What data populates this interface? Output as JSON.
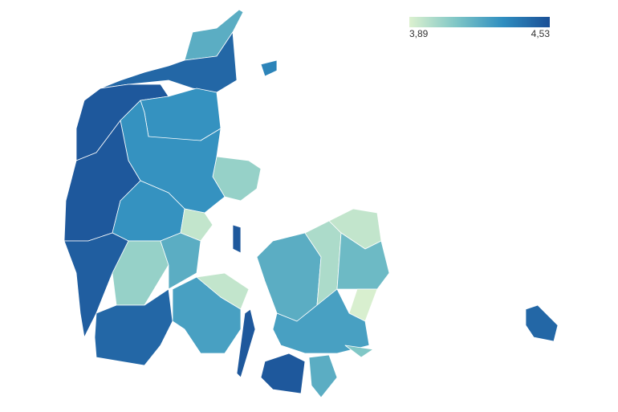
{
  "map": {
    "legend": {
      "min": {
        "value": 3.89,
        "label": "3,89"
      },
      "max": {
        "value": 4.53,
        "label": "4,53"
      },
      "colors": [
        "#dcf1cf",
        "#7fc6c6",
        "#2f8ec0",
        "#1b4f96"
      ]
    },
    "regions": {
      "values": [
        4.2,
        4.45,
        4.5,
        4.3,
        4.05,
        4.3,
        4.5,
        4.3,
        3.95,
        4.48,
        4.05,
        4.2,
        4.45,
        4.25,
        3.95,
        4.5,
        4.2,
        4.0,
        3.95,
        4.15,
        3.9,
        4.25,
        4.5,
        4.2,
        4.1,
        4.45,
        4.35,
        4.5
      ]
    }
  }
}
